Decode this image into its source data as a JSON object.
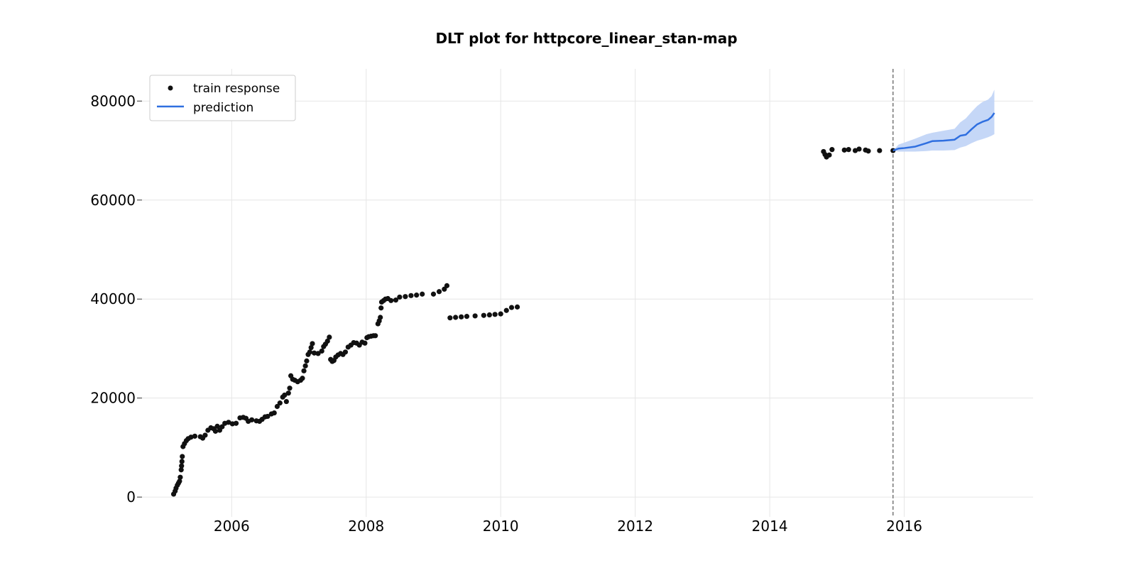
{
  "chart_data": {
    "type": "scatter",
    "title": "DLT plot for httpcore_linear_stan-map",
    "xlabel": "",
    "ylabel": "",
    "xlim": [
      "2004-09-01",
      "2017-12-01"
    ],
    "ylim": [
      -4000,
      86500
    ],
    "x_ticks": [
      "2006",
      "2008",
      "2010",
      "2012",
      "2014",
      "2016"
    ],
    "y_ticks": [
      "0",
      "20000",
      "40000",
      "60000",
      "80000"
    ],
    "grid": true,
    "legend_position": "top-left",
    "colors": {
      "train_points": "#111111",
      "prediction_line": "#2f6fe0",
      "prediction_band": "#c2d5f7",
      "cutoff_line": "#777777",
      "grid": "#e6e6e6"
    },
    "cutoff_date": "2015-11-01",
    "series": [
      {
        "name": "train response",
        "kind": "scatter",
        "points": [
          [
            "2005-02-20",
            600
          ],
          [
            "2005-02-28",
            1200
          ],
          [
            "2005-03-05",
            1800
          ],
          [
            "2005-03-12",
            2400
          ],
          [
            "2005-03-18",
            2800
          ],
          [
            "2005-03-24",
            3200
          ],
          [
            "2005-03-28",
            4000
          ],
          [
            "2005-04-02",
            5500
          ],
          [
            "2005-04-04",
            6300
          ],
          [
            "2005-04-06",
            7200
          ],
          [
            "2005-04-08",
            8200
          ],
          [
            "2005-04-12",
            10200
          ],
          [
            "2005-04-20",
            10800
          ],
          [
            "2005-04-30",
            11400
          ],
          [
            "2005-05-10",
            11800
          ],
          [
            "2005-05-25",
            12100
          ],
          [
            "2005-06-15",
            12300
          ],
          [
            "2005-07-15",
            12200
          ],
          [
            "2005-07-28",
            11900
          ],
          [
            "2005-08-10",
            12500
          ],
          [
            "2005-08-25",
            13500
          ],
          [
            "2005-09-10",
            14000
          ],
          [
            "2005-09-25",
            13800
          ],
          [
            "2005-10-05",
            13300
          ],
          [
            "2005-10-15",
            14300
          ],
          [
            "2005-10-28",
            13500
          ],
          [
            "2005-11-10",
            14200
          ],
          [
            "2005-11-25",
            14900
          ],
          [
            "2005-12-15",
            15100
          ],
          [
            "2006-01-05",
            14800
          ],
          [
            "2006-01-25",
            14900
          ],
          [
            "2006-02-15",
            16000
          ],
          [
            "2006-03-05",
            16100
          ],
          [
            "2006-03-20",
            15900
          ],
          [
            "2006-04-01",
            15300
          ],
          [
            "2006-04-20",
            15600
          ],
          [
            "2006-05-15",
            15400
          ],
          [
            "2006-06-01",
            15300
          ],
          [
            "2006-06-15",
            15700
          ],
          [
            "2006-07-01",
            16200
          ],
          [
            "2006-07-15",
            16300
          ],
          [
            "2006-08-05",
            16800
          ],
          [
            "2006-08-20",
            17000
          ],
          [
            "2006-09-05",
            18300
          ],
          [
            "2006-09-20",
            19000
          ],
          [
            "2006-10-05",
            20200
          ],
          [
            "2006-10-15",
            20600
          ],
          [
            "2006-10-25",
            19300
          ],
          [
            "2006-11-05",
            21000
          ],
          [
            "2006-11-12",
            22000
          ],
          [
            "2006-11-18",
            24500
          ],
          [
            "2006-11-28",
            23800
          ],
          [
            "2006-12-10",
            23600
          ],
          [
            "2006-12-25",
            23300
          ],
          [
            "2007-01-10",
            23600
          ],
          [
            "2007-01-20",
            24000
          ],
          [
            "2007-01-28",
            25500
          ],
          [
            "2007-02-05",
            26500
          ],
          [
            "2007-02-12",
            27500
          ],
          [
            "2007-02-20",
            28800
          ],
          [
            "2007-03-01",
            29300
          ],
          [
            "2007-03-08",
            30200
          ],
          [
            "2007-03-15",
            31000
          ],
          [
            "2007-03-25",
            29100
          ],
          [
            "2007-04-15",
            29000
          ],
          [
            "2007-05-05",
            29500
          ],
          [
            "2007-05-15",
            30400
          ],
          [
            "2007-05-25",
            30900
          ],
          [
            "2007-06-05",
            31500
          ],
          [
            "2007-06-15",
            32300
          ],
          [
            "2007-06-22",
            27800
          ],
          [
            "2007-07-01",
            27400
          ],
          [
            "2007-07-10",
            27600
          ],
          [
            "2007-07-20",
            28300
          ],
          [
            "2007-08-01",
            28700
          ],
          [
            "2007-08-15",
            29000
          ],
          [
            "2007-08-28",
            28800
          ],
          [
            "2007-09-10",
            29300
          ],
          [
            "2007-09-25",
            30300
          ],
          [
            "2007-10-10",
            30700
          ],
          [
            "2007-10-25",
            31200
          ],
          [
            "2007-11-10",
            31100
          ],
          [
            "2007-11-25",
            30700
          ],
          [
            "2007-12-10",
            31300
          ],
          [
            "2007-12-25",
            31100
          ],
          [
            "2008-01-05",
            32200
          ],
          [
            "2008-01-15",
            32400
          ],
          [
            "2008-01-28",
            32500
          ],
          [
            "2008-02-10",
            32600
          ],
          [
            "2008-02-20",
            32600
          ],
          [
            "2008-03-05",
            35000
          ],
          [
            "2008-03-12",
            35600
          ],
          [
            "2008-03-18",
            36300
          ],
          [
            "2008-03-22",
            38200
          ],
          [
            "2008-03-25",
            39400
          ],
          [
            "2008-04-05",
            39700
          ],
          [
            "2008-04-15",
            40000
          ],
          [
            "2008-04-28",
            40100
          ],
          [
            "2008-05-15",
            39700
          ],
          [
            "2008-06-10",
            39800
          ],
          [
            "2008-07-01",
            40400
          ],
          [
            "2008-08-01",
            40500
          ],
          [
            "2008-09-01",
            40700
          ],
          [
            "2008-10-01",
            40800
          ],
          [
            "2008-11-01",
            41000
          ],
          [
            "2009-01-01",
            41000
          ],
          [
            "2009-02-01",
            41500
          ],
          [
            "2009-03-01",
            42000
          ],
          [
            "2009-03-15",
            42700
          ],
          [
            "2009-04-01",
            36200
          ],
          [
            "2009-05-01",
            36300
          ],
          [
            "2009-06-01",
            36400
          ],
          [
            "2009-07-01",
            36500
          ],
          [
            "2009-08-15",
            36600
          ],
          [
            "2009-10-01",
            36700
          ],
          [
            "2009-11-01",
            36800
          ],
          [
            "2009-12-01",
            36900
          ],
          [
            "2010-01-01",
            37000
          ],
          [
            "2010-02-01",
            37700
          ],
          [
            "2010-03-01",
            38300
          ],
          [
            "2010-04-01",
            38400
          ],
          [
            "2014-10-20",
            69800
          ],
          [
            "2014-10-28",
            69200
          ],
          [
            "2014-11-05",
            68700
          ],
          [
            "2014-11-20",
            69100
          ],
          [
            "2014-12-05",
            70200
          ],
          [
            "2015-02-10",
            70100
          ],
          [
            "2015-03-05",
            70200
          ],
          [
            "2015-04-10",
            70000
          ],
          [
            "2015-05-01",
            70300
          ],
          [
            "2015-06-05",
            70100
          ],
          [
            "2015-06-20",
            69900
          ],
          [
            "2015-08-20",
            70000
          ],
          [
            "2015-11-01",
            70000
          ]
        ]
      },
      {
        "name": "prediction",
        "kind": "line",
        "points": [
          [
            "2015-11-01",
            70000,
            70000,
            70000
          ],
          [
            "2015-12-01",
            70400,
            69800,
            71200
          ],
          [
            "2016-01-01",
            70500,
            69800,
            71600
          ],
          [
            "2016-03-01",
            70800,
            69800,
            72400
          ],
          [
            "2016-05-01",
            71500,
            69900,
            73300
          ],
          [
            "2016-06-01",
            71900,
            70000,
            73600
          ],
          [
            "2016-08-01",
            72000,
            70000,
            74000
          ],
          [
            "2016-10-01",
            72200,
            70100,
            74400
          ],
          [
            "2016-11-01",
            73000,
            70600,
            75700
          ],
          [
            "2016-12-01",
            73200,
            70900,
            76500
          ],
          [
            "2017-01-01",
            74300,
            71500,
            77800
          ],
          [
            "2017-02-01",
            75300,
            72000,
            79000
          ],
          [
            "2017-03-01",
            75800,
            72300,
            79800
          ],
          [
            "2017-04-01",
            76200,
            72700,
            80300
          ],
          [
            "2017-04-20",
            76800,
            73000,
            81000
          ],
          [
            "2017-05-05",
            77600,
            73300,
            82300
          ]
        ]
      }
    ]
  }
}
